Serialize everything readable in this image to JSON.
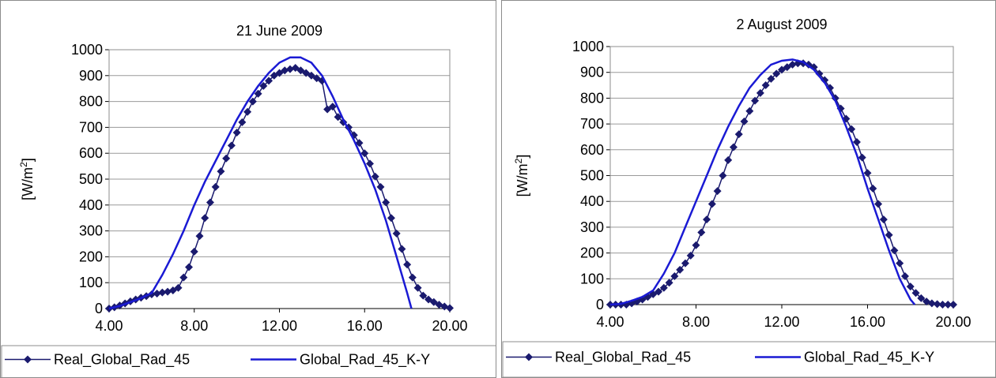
{
  "chart_data": [
    {
      "type": "line",
      "title": "21 June 2009",
      "ylabel": "[W/m2]",
      "ylabel_base": "[W/m",
      "ylabel_sup": "2",
      "ylabel_close": "]",
      "xlim": [
        4,
        20
      ],
      "ylim": [
        0,
        1000
      ],
      "xticks": [
        4,
        8,
        12,
        16,
        20
      ],
      "xtick_labels": [
        "4.00",
        "8.00",
        "12.00",
        "16.00",
        "20.00"
      ],
      "yticks": [
        0,
        100,
        200,
        300,
        400,
        500,
        600,
        700,
        800,
        900,
        1000
      ],
      "ytick_labels": [
        "0",
        "100",
        "200",
        "300",
        "400",
        "500",
        "600",
        "700",
        "800",
        "900",
        "1000"
      ],
      "grid": true,
      "legend_position": "bottom",
      "series": [
        {
          "name": "Real_Global_Rad_45",
          "color": "#1a1a6e",
          "marker": "diamond",
          "x": [
            4.0,
            4.25,
            4.5,
            4.75,
            5.0,
            5.25,
            5.5,
            5.75,
            6.0,
            6.25,
            6.5,
            6.75,
            7.0,
            7.25,
            7.5,
            7.75,
            8.0,
            8.25,
            8.5,
            8.75,
            9.0,
            9.25,
            9.5,
            9.75,
            10.0,
            10.25,
            10.5,
            10.75,
            11.0,
            11.25,
            11.5,
            11.75,
            12.0,
            12.25,
            12.5,
            12.75,
            13.0,
            13.25,
            13.5,
            13.75,
            14.0,
            14.25,
            14.5,
            14.75,
            15.0,
            15.25,
            15.5,
            15.75,
            16.0,
            16.25,
            16.5,
            16.75,
            17.0,
            17.25,
            17.5,
            17.75,
            18.0,
            18.25,
            18.5,
            18.75,
            19.0,
            19.25,
            19.5,
            19.75,
            20.0
          ],
          "y": [
            0,
            5,
            12,
            20,
            28,
            35,
            42,
            48,
            55,
            58,
            62,
            65,
            70,
            80,
            120,
            160,
            220,
            280,
            350,
            410,
            470,
            530,
            580,
            630,
            680,
            720,
            760,
            800,
            830,
            860,
            880,
            900,
            910,
            920,
            925,
            930,
            920,
            910,
            900,
            890,
            880,
            770,
            780,
            740,
            720,
            700,
            670,
            640,
            600,
            560,
            510,
            470,
            410,
            350,
            290,
            230,
            170,
            120,
            80,
            50,
            35,
            25,
            15,
            8,
            2
          ]
        },
        {
          "name": "Global_Rad_45_K-Y",
          "color": "#1a1ad4",
          "marker": "none",
          "x": [
            4.0,
            4.5,
            5.0,
            5.5,
            6.0,
            6.5,
            7.0,
            7.5,
            8.0,
            8.5,
            9.0,
            9.5,
            10.0,
            10.5,
            11.0,
            11.5,
            12.0,
            12.5,
            13.0,
            13.5,
            14.0,
            14.5,
            15.0,
            15.5,
            16.0,
            16.5,
            17.0,
            17.5,
            18.0,
            18.2
          ],
          "y": [
            0,
            10,
            25,
            40,
            60,
            130,
            210,
            300,
            400,
            490,
            570,
            650,
            730,
            800,
            860,
            910,
            950,
            970,
            970,
            950,
            900,
            820,
            730,
            650,
            560,
            460,
            340,
            200,
            60,
            0
          ]
        }
      ]
    },
    {
      "type": "line",
      "title": "2 August 2009",
      "ylabel": "[W/m2]",
      "ylabel_base": "[W/m",
      "ylabel_sup": "2",
      "ylabel_close": "]",
      "xlim": [
        4,
        20
      ],
      "ylim": [
        0,
        1000
      ],
      "xticks": [
        4,
        8,
        12,
        16,
        20
      ],
      "xtick_labels": [
        "4.00",
        "8.00",
        "12.00",
        "16.00",
        "20.00"
      ],
      "yticks": [
        0,
        100,
        200,
        300,
        400,
        500,
        600,
        700,
        800,
        900,
        1000
      ],
      "ytick_labels": [
        "0",
        "100",
        "200",
        "300",
        "400",
        "500",
        "600",
        "700",
        "800",
        "900",
        "1000"
      ],
      "grid": true,
      "legend_position": "bottom",
      "series": [
        {
          "name": "Real_Global_Rad_45",
          "color": "#1a1a6e",
          "marker": "diamond",
          "x": [
            4.0,
            4.25,
            4.5,
            4.75,
            5.0,
            5.25,
            5.5,
            5.75,
            6.0,
            6.25,
            6.5,
            6.75,
            7.0,
            7.25,
            7.5,
            7.75,
            8.0,
            8.25,
            8.5,
            8.75,
            9.0,
            9.25,
            9.5,
            9.75,
            10.0,
            10.25,
            10.5,
            10.75,
            11.0,
            11.25,
            11.5,
            11.75,
            12.0,
            12.25,
            12.5,
            12.75,
            13.0,
            13.25,
            13.5,
            13.75,
            14.0,
            14.25,
            14.5,
            14.75,
            15.0,
            15.25,
            15.5,
            15.75,
            16.0,
            16.25,
            16.5,
            16.75,
            17.0,
            17.25,
            17.5,
            17.75,
            18.0,
            18.25,
            18.5,
            18.75,
            19.0,
            19.25,
            19.5,
            19.75,
            20.0
          ],
          "y": [
            0,
            0,
            0,
            0,
            5,
            12,
            20,
            30,
            40,
            50,
            65,
            85,
            110,
            135,
            160,
            190,
            230,
            280,
            330,
            390,
            440,
            500,
            560,
            610,
            660,
            710,
            750,
            790,
            820,
            850,
            875,
            895,
            910,
            920,
            930,
            935,
            935,
            930,
            920,
            895,
            870,
            840,
            800,
            760,
            720,
            680,
            630,
            570,
            510,
            450,
            390,
            330,
            270,
            210,
            160,
            110,
            70,
            45,
            25,
            12,
            5,
            2,
            0,
            0,
            0
          ],
          "y_note_hidden": false
        },
        {
          "name": "Global_Rad_45_K-Y",
          "color": "#1a1ad4",
          "marker": "none",
          "x": [
            4.0,
            4.5,
            5.0,
            5.5,
            6.0,
            6.5,
            7.0,
            7.5,
            8.0,
            8.5,
            9.0,
            9.5,
            10.0,
            10.5,
            11.0,
            11.5,
            12.0,
            12.5,
            13.0,
            13.5,
            14.0,
            14.5,
            15.0,
            15.5,
            16.0,
            16.5,
            17.0,
            17.5,
            18.0,
            18.2
          ],
          "y": [
            0,
            3,
            15,
            30,
            55,
            120,
            200,
            300,
            400,
            500,
            600,
            690,
            770,
            840,
            890,
            930,
            945,
            950,
            940,
            910,
            860,
            790,
            690,
            580,
            450,
            330,
            210,
            100,
            20,
            0
          ]
        }
      ]
    }
  ]
}
